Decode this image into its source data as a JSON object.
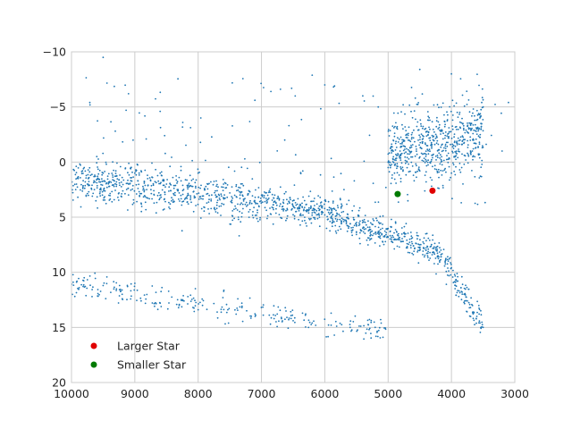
{
  "chart_data": {
    "type": "scatter",
    "title": "",
    "xlabel": "",
    "ylabel": "",
    "xlim": [
      10000,
      3000
    ],
    "ylim": [
      20,
      -10
    ],
    "x_inverted": true,
    "y_inverted": true,
    "grid": true,
    "x_ticks": [
      10000,
      9000,
      8000,
      7000,
      6000,
      5000,
      4000,
      3000
    ],
    "y_ticks": [
      -10,
      -5,
      0,
      5,
      10,
      15,
      20
    ],
    "x_tick_labels": [
      "10000",
      "9000",
      "8000",
      "7000",
      "6000",
      "5000",
      "4000",
      "3000"
    ],
    "y_tick_labels": [
      "−10",
      "−5",
      "0",
      "5",
      "10",
      "15",
      "20"
    ],
    "legend_position": "lower-left",
    "colors": {
      "background_points": "#1f77b4",
      "larger_star": "#e00000",
      "smaller_star": "#007a00",
      "grid": "#cccccc",
      "spine": "#bfbfbf"
    },
    "series": [
      {
        "name": "",
        "marker": "dot",
        "description_ranges": true,
        "values": [
          [
            9800,
            0.5
          ],
          [
            9750,
            2.0
          ],
          [
            9700,
            1.2
          ],
          [
            9600,
            -0.5
          ],
          [
            9550,
            2.5
          ],
          [
            9500,
            1.0
          ],
          [
            9450,
            0.2
          ],
          [
            9400,
            2.2
          ],
          [
            9350,
            1.6
          ],
          [
            9300,
            0.8
          ],
          [
            9250,
            2.8
          ],
          [
            9200,
            1.4
          ],
          [
            9150,
            0.6
          ],
          [
            9100,
            2.0
          ],
          [
            9000,
            1.0
          ],
          [
            8950,
            2.4
          ],
          [
            8900,
            0.8
          ],
          [
            8850,
            1.8
          ],
          [
            8800,
            1.2
          ],
          [
            8700,
            2.6
          ],
          [
            8600,
            1.0
          ],
          [
            8500,
            2.0
          ],
          [
            8400,
            1.4
          ],
          [
            8300,
            2.8
          ],
          [
            8200,
            1.6
          ],
          [
            8100,
            2.2
          ],
          [
            8000,
            1.0
          ],
          [
            7900,
            2.4
          ],
          [
            7800,
            1.8
          ],
          [
            7700,
            2.6
          ],
          [
            7600,
            2.0
          ],
          [
            7500,
            2.8
          ],
          [
            7400,
            2.2
          ],
          [
            7300,
            3.0
          ],
          [
            7200,
            2.6
          ],
          [
            7100,
            3.2
          ],
          [
            7000,
            3.0
          ],
          [
            6900,
            3.4
          ],
          [
            6800,
            3.6
          ],
          [
            6700,
            3.8
          ],
          [
            6600,
            3.4
          ],
          [
            6500,
            4.0
          ],
          [
            6400,
            4.2
          ],
          [
            6300,
            4.4
          ],
          [
            6200,
            4.6
          ],
          [
            6100,
            4.2
          ],
          [
            6000,
            4.8
          ],
          [
            5900,
            5.0
          ],
          [
            5800,
            5.2
          ],
          [
            5700,
            5.4
          ],
          [
            5600,
            5.6
          ],
          [
            5500,
            5.8
          ],
          [
            5400,
            6.0
          ],
          [
            5300,
            6.2
          ],
          [
            5200,
            6.4
          ],
          [
            5100,
            6.6
          ],
          [
            5000,
            6.8
          ],
          [
            4900,
            7.0
          ],
          [
            4800,
            7.2
          ],
          [
            4700,
            7.4
          ],
          [
            4600,
            7.6
          ],
          [
            4500,
            7.8
          ],
          [
            4400,
            8.0
          ],
          [
            4300,
            8.2
          ],
          [
            4200,
            8.6
          ],
          [
            4100,
            9.0
          ],
          [
            4000,
            9.6
          ],
          [
            3950,
            10.2
          ],
          [
            3900,
            10.8
          ],
          [
            3850,
            11.4
          ],
          [
            3800,
            12.0
          ],
          [
            3750,
            12.6
          ],
          [
            3700,
            13.2
          ],
          [
            3650,
            13.6
          ],
          [
            3600,
            14.0
          ],
          [
            3550,
            14.6
          ],
          [
            3500,
            15.0
          ],
          [
            5000,
            0.5
          ],
          [
            4900,
            1.0
          ],
          [
            4800,
            1.5
          ],
          [
            4700,
            0.0
          ],
          [
            4600,
            1.2
          ],
          [
            4500,
            0.8
          ],
          [
            4400,
            1.8
          ],
          [
            4300,
            0.4
          ],
          [
            4200,
            1.4
          ],
          [
            4100,
            0.6
          ],
          [
            4000,
            1.0
          ],
          [
            3900,
            -0.4
          ],
          [
            3800,
            0.2
          ],
          [
            3700,
            -1.0
          ],
          [
            3650,
            -2.0
          ],
          [
            3600,
            -3.0
          ],
          [
            3550,
            -4.0
          ],
          [
            3500,
            -5.0
          ],
          [
            9800,
            10.5
          ],
          [
            9500,
            11.2
          ],
          [
            9200,
            12.0
          ],
          [
            8900,
            12.6
          ],
          [
            8600,
            12.8
          ],
          [
            8300,
            13.0
          ],
          [
            8000,
            13.4
          ],
          [
            7700,
            13.6
          ],
          [
            7400,
            13.8
          ],
          [
            7100,
            14.0
          ],
          [
            6800,
            14.2
          ],
          [
            6500,
            14.4
          ],
          [
            6200,
            14.6
          ],
          [
            5900,
            14.8
          ],
          [
            5600,
            15.0
          ],
          [
            5300,
            15.2
          ],
          [
            9500,
            -9.5
          ],
          [
            9100,
            -6.2
          ],
          [
            8600,
            -4.6
          ],
          [
            6700,
            -6.6
          ],
          [
            6000,
            -7.0
          ],
          [
            5400,
            -6.0
          ],
          [
            4500,
            -8.4
          ],
          [
            4000,
            -8.0
          ],
          [
            3100,
            -5.4
          ],
          [
            3200,
            -1.0
          ]
        ]
      },
      {
        "name": "Larger Star",
        "values": [
          [
            4300,
            2.6
          ]
        ]
      },
      {
        "name": "Smaller Star",
        "values": [
          [
            4850,
            2.9
          ]
        ]
      }
    ]
  }
}
